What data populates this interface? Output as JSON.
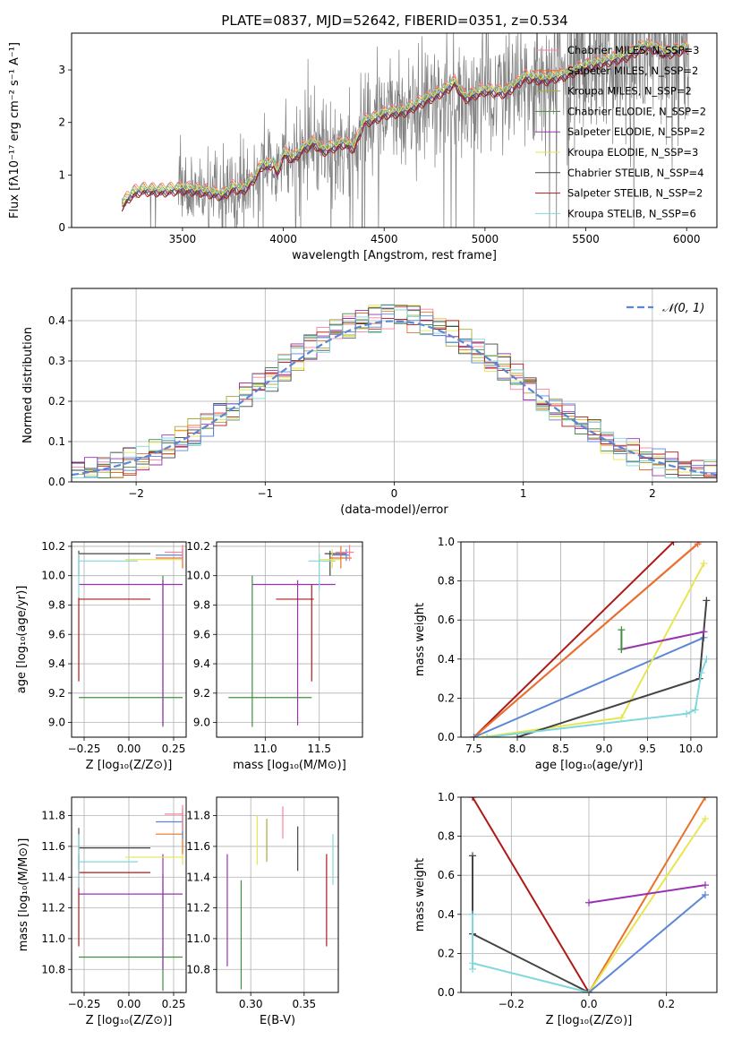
{
  "figure_title": "PLATE=0837, MJD=52642, FIBERID=0351, z=0.534",
  "colors": {
    "chabrier_miles": "#ff7f9f",
    "salpeter_miles": "#e8712a",
    "kroupa_miles": "#a9a93a",
    "chabrier_elodie": "#3f8f3f",
    "salpeter_elodie": "#9932b0",
    "kroupa_elodie": "#e6e650",
    "chabrier_stelib": "#444444",
    "salpeter_stelib": "#b01818",
    "kroupa_stelib": "#7fd8dc",
    "blue": "#5b87d6",
    "data": "#808080"
  },
  "chart_data": [
    {
      "id": "spectrum",
      "type": "line",
      "xlabel": "wavelength [Angstrom, rest frame]",
      "ylabel": "Flux [fλ10⁻¹⁷ erg cm⁻² s⁻¹ A⁻¹]",
      "xlim": [
        2950,
        6150
      ],
      "ylim": [
        0,
        3.7
      ],
      "xticks": [
        "3500",
        "4000",
        "4500",
        "5000",
        "5500",
        "6000"
      ],
      "yticks": [
        "0",
        "1",
        "2",
        "3"
      ],
      "legend": "top-right",
      "legend_entries": [
        {
          "label": "Chabrier MILES, N_SSP=3",
          "color": "#ff7f9f"
        },
        {
          "label": "Salpeter MILES, N_SSP=2",
          "color": "#e8712a"
        },
        {
          "label": "Kroupa MILES, N_SSP=2",
          "color": "#a9a93a"
        },
        {
          "label": "Chabrier ELODIE, N_SSP=2",
          "color": "#3f8f3f"
        },
        {
          "label": "Salpeter ELODIE, N_SSP=2",
          "color": "#9932b0"
        },
        {
          "label": "Kroupa ELODIE, N_SSP=3",
          "color": "#e6e650"
        },
        {
          "label": "Chabrier STELIB, N_SSP=4",
          "color": "#444444"
        },
        {
          "label": "Salpeter STELIB, N_SSP=2",
          "color": "#b01818"
        },
        {
          "label": "Kroupa STELIB, N_SSP=6",
          "color": "#7fd8dc"
        }
      ],
      "model_x": [
        3200,
        3230,
        3260,
        3300,
        3400,
        3500,
        3600,
        3700,
        3750,
        3800,
        3850,
        3900,
        3930,
        3950,
        3970,
        4000,
        4050,
        4100,
        4150,
        4200,
        4300,
        4350,
        4400,
        4450,
        4500,
        4600,
        4700,
        4800,
        4850,
        4900,
        5000,
        5100,
        5200,
        5300,
        5400,
        5500,
        5600,
        5700,
        5800,
        5900,
        6000
      ],
      "model_y": [
        0.4,
        0.55,
        0.65,
        0.7,
        0.68,
        0.72,
        0.68,
        0.6,
        0.75,
        0.7,
        0.9,
        1.2,
        1.15,
        1.25,
        1.0,
        1.4,
        1.3,
        1.5,
        1.6,
        1.45,
        1.6,
        1.5,
        2.0,
        2.05,
        2.15,
        2.2,
        2.4,
        2.6,
        2.75,
        2.45,
        2.6,
        2.55,
        2.85,
        2.8,
        2.9,
        3.05,
        3.15,
        3.25,
        3.45,
        3.3,
        3.4
      ],
      "model_offsets": [
        0.12,
        0.1,
        0.04,
        0.0,
        -0.02,
        0.06,
        -0.04,
        -0.06,
        0.08
      ]
    },
    {
      "id": "histogram",
      "type": "histogram",
      "xlabel": "(data-model)/error",
      "ylabel": "Normed distribution",
      "xlim": [
        -2.5,
        2.5
      ],
      "ylim": [
        0,
        0.48
      ],
      "xticks": [
        "−2",
        "−1",
        "0",
        "1",
        "2"
      ],
      "yticks": [
        "0.0",
        "0.1",
        "0.2",
        "0.3",
        "0.4"
      ],
      "legend": "top-right",
      "legend_entries": [
        {
          "label": "𝒩(0, 1)",
          "color": "#5b87d6",
          "style": "dashed"
        }
      ],
      "bin_width": 0.1,
      "grid": true
    },
    {
      "id": "age_vs_Z",
      "type": "errorbar",
      "xlabel": "Z [log₁₀(Z/Z⊙)]",
      "ylabel": "age  [log₁₀(age/yr)]",
      "xlim": [
        -0.32,
        0.32
      ],
      "ylim": [
        8.9,
        10.23
      ],
      "xticks": [
        {
          "v": -0.25,
          "t": "−0.25"
        },
        {
          "v": 0.0,
          "t": "0.00"
        },
        {
          "v": 0.25,
          "t": "0.25"
        }
      ],
      "yticks": [
        {
          "v": 9.0,
          "t": "9.0"
        },
        {
          "v": 9.2,
          "t": "9.2"
        },
        {
          "v": 9.4,
          "t": "9.4"
        },
        {
          "v": 9.6,
          "t": "9.6"
        },
        {
          "v": 9.8,
          "t": "9.8"
        },
        {
          "v": 10.0,
          "t": "10.0"
        },
        {
          "v": 10.2,
          "t": "10.2"
        }
      ],
      "bars": [
        {
          "color": "#3f8f3f",
          "h": [
            -0.28,
            0.3,
            9.17
          ],
          "v": [
            0.19,
            8.97,
            10.0
          ]
        },
        {
          "color": "#9932b0",
          "h": [
            -0.28,
            0.3,
            9.94
          ],
          "v": [
            0.19,
            8.98,
            9.97
          ]
        },
        {
          "color": "#b01818",
          "h": [
            -0.28,
            0.12,
            9.84
          ],
          "v": [
            -0.28,
            9.28,
            9.85
          ]
        },
        {
          "color": "#444444",
          "h": [
            -0.28,
            0.12,
            10.15
          ],
          "v": [
            -0.28,
            10.0,
            10.17
          ]
        },
        {
          "color": "#7fd8dc",
          "h": [
            -0.28,
            0.05,
            10.1
          ],
          "v": [
            -0.28,
            9.85,
            10.15
          ]
        },
        {
          "color": "#e6e650",
          "h": [
            -0.02,
            0.3,
            10.11
          ],
          "v": [
            0.3,
            10.05,
            10.18
          ]
        },
        {
          "color": "#e8712a",
          "h": [
            0.15,
            0.3,
            10.12
          ],
          "v": [
            0.3,
            10.05,
            10.2
          ]
        },
        {
          "color": "#5b87d6",
          "h": [
            0.15,
            0.3,
            10.14
          ],
          "v": [
            0.3,
            10.1,
            10.18
          ]
        },
        {
          "color": "#ff7f9f",
          "h": [
            0.2,
            0.3,
            10.16
          ],
          "v": [
            0.3,
            10.1,
            10.21
          ]
        }
      ]
    },
    {
      "id": "age_vs_mass",
      "type": "errorbar",
      "xlabel": "mass [log₁₀(M/M⊙)]",
      "ylabel": "",
      "xlim": [
        10.55,
        11.9
      ],
      "ylim": [
        8.9,
        10.23
      ],
      "xticks": [
        {
          "v": 11.0,
          "t": "11.0"
        },
        {
          "v": 11.5,
          "t": "11.5"
        }
      ],
      "yticks": [
        {
          "v": 9.0,
          "t": "9.0"
        },
        {
          "v": 9.2,
          "t": "9.2"
        },
        {
          "v": 9.4,
          "t": "9.4"
        },
        {
          "v": 9.6,
          "t": "9.6"
        },
        {
          "v": 9.8,
          "t": "9.8"
        },
        {
          "v": 10.0,
          "t": "10.0"
        },
        {
          "v": 10.2,
          "t": "10.2"
        }
      ],
      "bars": [
        {
          "color": "#3f8f3f",
          "h": [
            10.66,
            11.43,
            9.17
          ],
          "v": [
            10.88,
            8.97,
            10.0
          ]
        },
        {
          "color": "#9932b0",
          "h": [
            10.88,
            11.65,
            9.94
          ],
          "v": [
            11.3,
            8.98,
            9.97
          ]
        },
        {
          "color": "#b01818",
          "h": [
            11.1,
            11.45,
            9.84
          ],
          "v": [
            11.43,
            9.28,
            9.94
          ]
        },
        {
          "color": "#444444",
          "h": [
            11.55,
            11.75,
            10.15
          ],
          "v": [
            11.6,
            10.0,
            10.17
          ]
        },
        {
          "color": "#7fd8dc",
          "h": [
            11.4,
            11.65,
            10.1
          ],
          "v": [
            11.5,
            9.9,
            10.15
          ]
        },
        {
          "color": "#e6e650",
          "h": [
            11.5,
            11.7,
            10.11
          ],
          "v": [
            11.62,
            10.05,
            10.18
          ]
        },
        {
          "color": "#e8712a",
          "h": [
            11.6,
            11.8,
            10.12
          ],
          "v": [
            11.7,
            10.05,
            10.2
          ]
        },
        {
          "color": "#5b87d6",
          "h": [
            11.62,
            11.78,
            10.14
          ],
          "v": [
            11.75,
            10.1,
            10.18
          ]
        },
        {
          "color": "#ff7f9f",
          "h": [
            11.65,
            11.82,
            10.16
          ],
          "v": [
            11.78,
            10.1,
            10.21
          ]
        }
      ]
    },
    {
      "id": "weight_vs_age",
      "type": "line",
      "xlabel": "age  [log₁₀(age/yr)]",
      "ylabel": "mass weight",
      "xlim": [
        7.35,
        10.3
      ],
      "ylim": [
        0,
        1
      ],
      "xticks": [
        {
          "v": 7.5,
          "t": "7.5"
        },
        {
          "v": 8.0,
          "t": "8.0"
        },
        {
          "v": 8.5,
          "t": "8.5"
        },
        {
          "v": 9.0,
          "t": "9.0"
        },
        {
          "v": 9.5,
          "t": "9.5"
        },
        {
          "v": 10.0,
          "t": "10.0"
        }
      ],
      "yticks": [
        {
          "v": 0.0,
          "t": "0.0"
        },
        {
          "v": 0.2,
          "t": "0.2"
        },
        {
          "v": 0.4,
          "t": "0.4"
        },
        {
          "v": 0.6,
          "t": "0.6"
        },
        {
          "v": 0.8,
          "t": "0.8"
        },
        {
          "v": 1.0,
          "t": "1.0"
        }
      ],
      "series": [
        {
          "color": "#b01818",
          "x": [
            7.5,
            9.8
          ],
          "y": [
            0.0,
            1.0
          ]
        },
        {
          "color": "#ff7f9f",
          "x": [
            7.5,
            10.1
          ],
          "y": [
            0.0,
            1.0
          ]
        },
        {
          "color": "#e8712a",
          "x": [
            7.5,
            10.08
          ],
          "y": [
            0.0,
            0.99
          ]
        },
        {
          "color": "#5b87d6",
          "x": [
            7.5,
            10.15
          ],
          "y": [
            0.0,
            0.51
          ]
        },
        {
          "color": "#e6e650",
          "x": [
            7.6,
            9.2,
            10.15
          ],
          "y": [
            0.0,
            0.1,
            0.89
          ]
        },
        {
          "color": "#444444",
          "x": [
            8.0,
            10.1,
            10.18
          ],
          "y": [
            0.0,
            0.3,
            0.7
          ]
        },
        {
          "color": "#7fd8dc",
          "x": [
            7.65,
            9.95,
            10.05,
            10.12,
            10.18
          ],
          "y": [
            0.0,
            0.12,
            0.14,
            0.33,
            0.4
          ]
        },
        {
          "color": "#9932b0",
          "x": [
            9.2,
            10.15
          ],
          "y": [
            0.45,
            0.54
          ]
        },
        {
          "color": "#3f8f3f",
          "x": [
            9.2,
            9.2
          ],
          "y": [
            0.45,
            0.55
          ]
        }
      ]
    },
    {
      "id": "mass_vs_Z",
      "type": "errorbar",
      "xlabel": "Z [log₁₀(Z/Z⊙)]",
      "ylabel": "mass [log₁₀(M/M⊙)]",
      "xlim": [
        -0.32,
        0.32
      ],
      "ylim": [
        10.65,
        11.92
      ],
      "xticks": [
        {
          "v": -0.25,
          "t": "−0.25"
        },
        {
          "v": 0.0,
          "t": "0.00"
        },
        {
          "v": 0.25,
          "t": "0.25"
        }
      ],
      "yticks": [
        {
          "v": 10.8,
          "t": "10.8"
        },
        {
          "v": 11.0,
          "t": "11.0"
        },
        {
          "v": 11.2,
          "t": "11.2"
        },
        {
          "v": 11.4,
          "t": "11.4"
        },
        {
          "v": 11.6,
          "t": "11.6"
        },
        {
          "v": 11.8,
          "t": "11.8"
        }
      ],
      "bars": [
        {
          "color": "#3f8f3f",
          "h": [
            -0.28,
            0.3,
            10.88
          ],
          "v": [
            0.19,
            10.66,
            11.42
          ]
        },
        {
          "color": "#9932b0",
          "h": [
            -0.28,
            0.3,
            11.29
          ],
          "v": [
            0.19,
            10.8,
            11.55
          ]
        },
        {
          "color": "#b01818",
          "h": [
            -0.28,
            0.12,
            11.43
          ],
          "v": [
            -0.28,
            10.95,
            11.55
          ]
        },
        {
          "color": "#444444",
          "h": [
            -0.28,
            0.12,
            11.59
          ],
          "v": [
            -0.28,
            11.45,
            11.72
          ]
        },
        {
          "color": "#7fd8dc",
          "h": [
            -0.28,
            0.05,
            11.5
          ],
          "v": [
            -0.28,
            11.33,
            11.68
          ]
        },
        {
          "color": "#e6e650",
          "h": [
            -0.02,
            0.3,
            11.53
          ],
          "v": [
            0.3,
            11.48,
            11.8
          ]
        },
        {
          "color": "#e8712a",
          "h": [
            0.15,
            0.3,
            11.68
          ],
          "v": [
            0.3,
            11.55,
            11.82
          ]
        },
        {
          "color": "#5b87d6",
          "h": [
            0.15,
            0.3,
            11.76
          ],
          "v": [
            0.3,
            11.65,
            11.85
          ]
        },
        {
          "color": "#ff7f9f",
          "h": [
            0.2,
            0.3,
            11.81
          ],
          "v": [
            0.3,
            11.7,
            11.87
          ]
        }
      ]
    },
    {
      "id": "mass_vs_ebv",
      "type": "errorbar",
      "xlabel": "E(B-V)",
      "ylabel": "",
      "xlim": [
        0.268,
        0.382
      ],
      "ylim": [
        10.65,
        11.92
      ],
      "xticks": [
        {
          "v": 0.3,
          "t": "0.30"
        },
        {
          "v": 0.35,
          "t": "0.35"
        }
      ],
      "yticks": [
        {
          "v": 10.8,
          "t": "10.8"
        },
        {
          "v": 11.0,
          "t": "11.0"
        },
        {
          "v": 11.2,
          "t": "11.2"
        },
        {
          "v": 11.4,
          "t": "11.4"
        },
        {
          "v": 11.6,
          "t": "11.6"
        },
        {
          "v": 11.8,
          "t": "11.8"
        }
      ],
      "bars": [
        {
          "color": "#9932b0",
          "v": [
            0.278,
            10.82,
            11.55
          ]
        },
        {
          "color": "#3f8f3f",
          "v": [
            0.291,
            10.67,
            11.38
          ]
        },
        {
          "color": "#e6e650",
          "v": [
            0.306,
            11.48,
            11.8
          ]
        },
        {
          "color": "#a9a93a",
          "v": [
            0.315,
            11.5,
            11.78
          ]
        },
        {
          "color": "#ff7f9f",
          "v": [
            0.33,
            11.65,
            11.86
          ]
        },
        {
          "color": "#444444",
          "v": [
            0.344,
            11.44,
            11.73
          ]
        },
        {
          "color": "#b01818",
          "v": [
            0.371,
            10.95,
            11.55
          ]
        },
        {
          "color": "#7fd8dc",
          "v": [
            0.377,
            11.35,
            11.68
          ]
        }
      ]
    },
    {
      "id": "weight_vs_Z",
      "type": "line",
      "xlabel": "Z [log₁₀(Z/Z⊙)]",
      "ylabel": "mass weight",
      "xlim": [
        -0.33,
        0.33
      ],
      "ylim": [
        0,
        1
      ],
      "xticks": [
        {
          "v": -0.2,
          "t": "−0.2"
        },
        {
          "v": 0.0,
          "t": "0.0"
        },
        {
          "v": 0.2,
          "t": "0.2"
        }
      ],
      "yticks": [
        {
          "v": 0.0,
          "t": "0.0"
        },
        {
          "v": 0.2,
          "t": "0.2"
        },
        {
          "v": 0.4,
          "t": "0.4"
        },
        {
          "v": 0.6,
          "t": "0.6"
        },
        {
          "v": 0.8,
          "t": "0.8"
        },
        {
          "v": 1.0,
          "t": "1.0"
        }
      ],
      "series": [
        {
          "color": "#b01818",
          "x": [
            -0.3,
            0.0
          ],
          "y": [
            1.0,
            0.0
          ]
        },
        {
          "color": "#e8712a",
          "x": [
            0.0,
            0.3
          ],
          "y": [
            0.0,
            1.0
          ]
        },
        {
          "color": "#e6e650",
          "x": [
            0.0,
            0.3
          ],
          "y": [
            0.0,
            0.89
          ]
        },
        {
          "color": "#5b87d6",
          "x": [
            0.0,
            0.3
          ],
          "y": [
            0.0,
            0.5
          ]
        },
        {
          "color": "#9932b0",
          "x": [
            0.0,
            0.3
          ],
          "y": [
            0.46,
            0.55
          ]
        },
        {
          "color": "#444444",
          "x": [
            -0.3,
            -0.3,
            0.0
          ],
          "y": [
            0.7,
            0.3,
            0.0
          ]
        },
        {
          "color": "#7fd8dc",
          "x": [
            -0.3,
            -0.3,
            -0.3,
            0.0
          ],
          "y": [
            0.4,
            0.12,
            0.15,
            0.0
          ]
        }
      ]
    }
  ]
}
